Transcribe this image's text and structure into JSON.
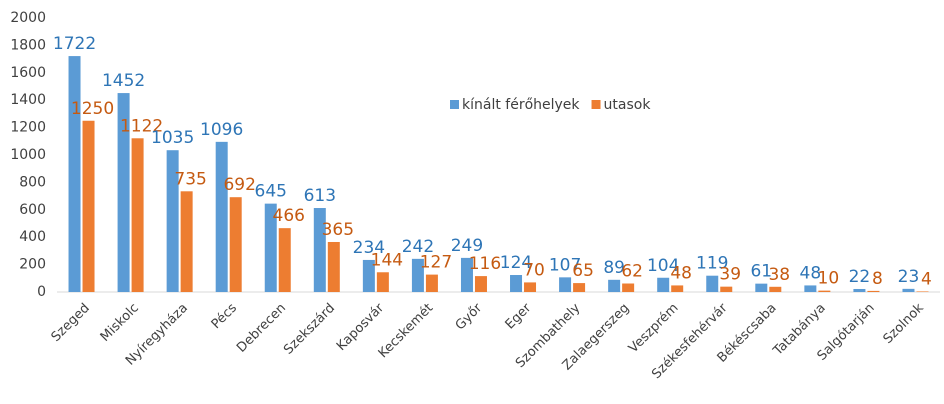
{
  "chart_data": {
    "type": "bar",
    "categories": [
      "Szeged",
      "Miskolc",
      "Nyíregyháza",
      "Pécs",
      "Debrecen",
      "Szekszárd",
      "Kaposvár",
      "Kecskemét",
      "Győr",
      "Eger",
      "Szombathely",
      "Zalaegerszeg",
      "Veszprém",
      "Székesfehérvár",
      "Békéscsaba",
      "Tatabánya",
      "Salgótarján",
      "Szolnok"
    ],
    "series": [
      {
        "name": "kínált férőhelyek",
        "color": "#5b9bd5",
        "values": [
          1722,
          1452,
          1035,
          1096,
          645,
          613,
          234,
          242,
          249,
          124,
          107,
          89,
          104,
          119,
          61,
          48,
          22,
          23
        ]
      },
      {
        "name": "utasok",
        "color": "#ed7d31",
        "values": [
          1250,
          1122,
          735,
          692,
          466,
          365,
          144,
          127,
          116,
          70,
          65,
          62,
          48,
          39,
          38,
          10,
          8,
          4
        ]
      }
    ],
    "ylim": [
      0,
      2000
    ],
    "yticks": [
      0,
      200,
      400,
      600,
      800,
      1000,
      1200,
      1400,
      1600,
      1800,
      2000
    ],
    "grid": false,
    "legend": "top"
  }
}
